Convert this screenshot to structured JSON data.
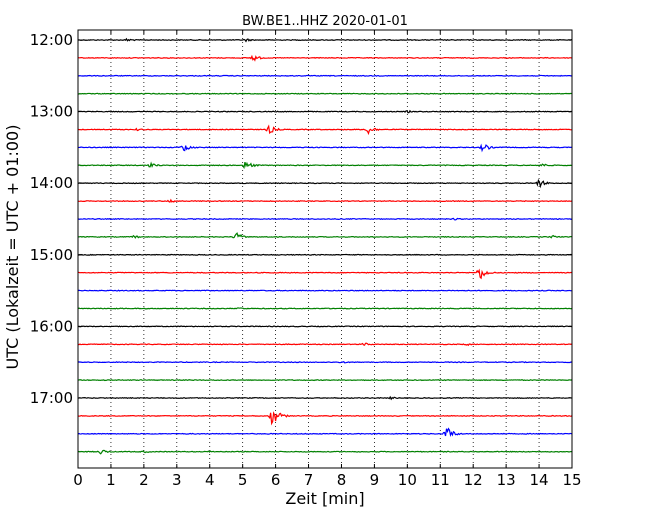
{
  "chart_data": {
    "type": "line",
    "title": "BW.BE1..HHZ 2020-01-01",
    "xlabel": "Zeit  [min]",
    "ylabel": "UTC (Lokalzeit = UTC + 01:00)",
    "xlim": [
      0,
      15
    ],
    "x_ticks": [
      "0",
      "1",
      "2",
      "3",
      "4",
      "5",
      "6",
      "7",
      "8",
      "9",
      "10",
      "11",
      "12",
      "13",
      "14",
      "15"
    ],
    "y_tick_labels": [
      "12:00",
      "13:00",
      "14:00",
      "15:00",
      "16:00",
      "17:00"
    ],
    "traces_per_hour": 4,
    "trace_interval_min": 15,
    "trace_colors": [
      "#000000",
      "#ff0000",
      "#0000ff",
      "#008000"
    ],
    "grid": "vertical dotted",
    "traces": [
      {
        "start": "12:00",
        "events": [
          {
            "x": 1.5,
            "amp": 0.6
          },
          {
            "x": 5.1,
            "amp": 0.5
          }
        ]
      },
      {
        "start": "12:15",
        "events": [
          {
            "x": 5.3,
            "amp": 1.2
          }
        ]
      },
      {
        "start": "12:30",
        "events": []
      },
      {
        "start": "12:45",
        "events": []
      },
      {
        "start": "13:00",
        "events": [
          {
            "x": 10.0,
            "amp": 0.4
          }
        ]
      },
      {
        "start": "13:15",
        "events": [
          {
            "x": 5.8,
            "amp": 1.4
          },
          {
            "x": 8.8,
            "amp": 1.6
          },
          {
            "x": 1.8,
            "amp": 0.4
          }
        ]
      },
      {
        "start": "13:30",
        "events": [
          {
            "x": 3.2,
            "amp": 1.5
          },
          {
            "x": 12.3,
            "amp": 1.3
          }
        ]
      },
      {
        "start": "13:45",
        "events": [
          {
            "x": 2.2,
            "amp": 0.8
          },
          {
            "x": 5.1,
            "amp": 1.5
          },
          {
            "x": 14.1,
            "amp": 0.6
          }
        ]
      },
      {
        "start": "14:00",
        "events": [
          {
            "x": 14.0,
            "amp": 1.3
          }
        ]
      },
      {
        "start": "14:15",
        "events": [
          {
            "x": 2.8,
            "amp": 0.6
          }
        ]
      },
      {
        "start": "14:30",
        "events": [
          {
            "x": 11.4,
            "amp": 0.4
          }
        ]
      },
      {
        "start": "14:45",
        "events": [
          {
            "x": 4.8,
            "amp": 1.4
          },
          {
            "x": 1.7,
            "amp": 0.5
          },
          {
            "x": 14.4,
            "amp": 0.5
          }
        ]
      },
      {
        "start": "15:00",
        "events": []
      },
      {
        "start": "15:15",
        "events": [
          {
            "x": 12.2,
            "amp": 2.3
          }
        ]
      },
      {
        "start": "15:30",
        "events": []
      },
      {
        "start": "15:45",
        "events": [
          {
            "x": 4.9,
            "amp": 0.4
          }
        ]
      },
      {
        "start": "16:00",
        "events": []
      },
      {
        "start": "16:15",
        "events": [
          {
            "x": 8.7,
            "amp": 0.5
          },
          {
            "x": 11.8,
            "amp": 0.4
          }
        ]
      },
      {
        "start": "16:30",
        "events": [
          {
            "x": 8.0,
            "amp": 0.4
          }
        ]
      },
      {
        "start": "16:45",
        "events": []
      },
      {
        "start": "17:00",
        "events": [
          {
            "x": 9.5,
            "amp": 0.4
          }
        ]
      },
      {
        "start": "17:15",
        "events": [
          {
            "x": 5.9,
            "amp": 3.2
          }
        ]
      },
      {
        "start": "17:30",
        "events": [
          {
            "x": 11.2,
            "amp": 2.3
          }
        ]
      },
      {
        "start": "17:45",
        "events": [
          {
            "x": 0.7,
            "amp": 0.9
          },
          {
            "x": 2.0,
            "amp": 0.4
          },
          {
            "x": 4.0,
            "amp": 0.3
          }
        ]
      }
    ]
  }
}
